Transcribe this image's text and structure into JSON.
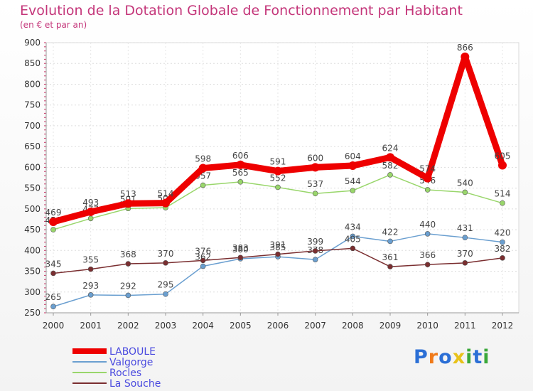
{
  "title": "Evolution de la Dotation Globale de Fonctionnement par Habitant",
  "subtitle": "(en € et par an)",
  "logo": {
    "p": "P",
    "r": "r",
    "o": "o",
    "x": "x",
    "i1": "i",
    "t": "t",
    "i2": "i",
    "colors": [
      "#2b6fd6",
      "#f07a1a",
      "#2b6fd6",
      "#e8c21a",
      "#3aa83a",
      "#2b6fd6",
      "#3aa83a"
    ]
  },
  "chart_data": {
    "type": "line",
    "title": "Evolution de la Dotation Globale de Fonctionnement par Habitant",
    "subtitle": "(en € et par an)",
    "x": [
      "2000",
      "2001",
      "2002",
      "2003",
      "2004",
      "2005",
      "2006",
      "2007",
      "2008",
      "2009",
      "2010",
      "2011",
      "2012"
    ],
    "ylim": [
      250,
      900
    ],
    "yticks": [
      250,
      300,
      350,
      400,
      450,
      500,
      550,
      600,
      650,
      700,
      750,
      800,
      850,
      900
    ],
    "grid": true,
    "legend": "bottom-left",
    "series": [
      {
        "name": "LABOULE",
        "color": "#ee0000",
        "width": 9,
        "values": [
          469,
          493,
          513,
          514,
          598,
          606,
          591,
          600,
          604,
          624,
          574,
          866,
          605
        ]
      },
      {
        "name": "Valgorge",
        "color": "#6a9fd0",
        "width": 1.5,
        "values": [
          265,
          293,
          292,
          295,
          362,
          380,
          385,
          378,
          434,
          422,
          440,
          431,
          420
        ]
      },
      {
        "name": "Rocles",
        "color": "#99d66b",
        "width": 1.5,
        "values": [
          450,
          477,
          501,
          503,
          557,
          565,
          552,
          537,
          544,
          582,
          546,
          540,
          514
        ]
      },
      {
        "name": "La Souche",
        "color": "#7a2e30",
        "width": 1.5,
        "values": [
          345,
          355,
          368,
          370,
          376,
          383,
          391,
          399,
          405,
          361,
          366,
          370,
          382
        ]
      }
    ]
  }
}
